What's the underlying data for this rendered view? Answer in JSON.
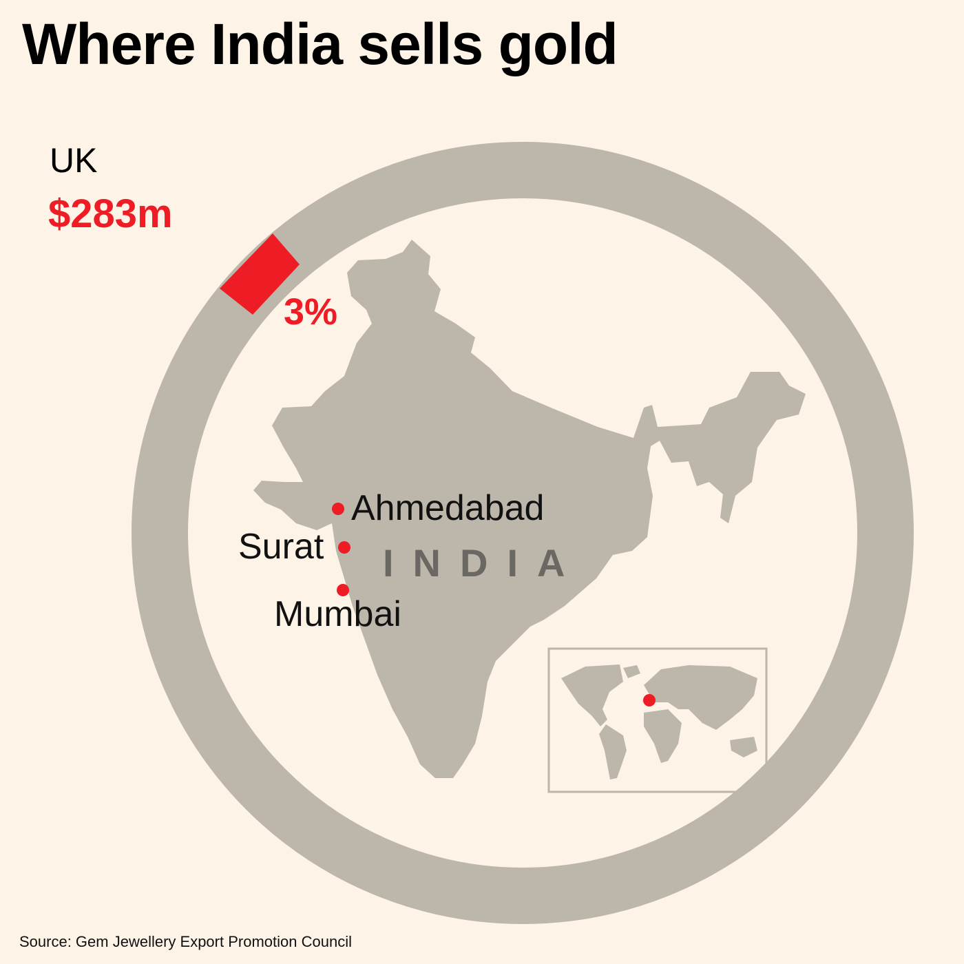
{
  "title": "Where India sells gold",
  "destination": {
    "country": "UK",
    "value": "$283m",
    "share_label": "3%",
    "share_fraction": 0.03
  },
  "map": {
    "region_label": "INDIA",
    "cities": [
      "Ahmedabad",
      "Surat",
      "Mumbai"
    ]
  },
  "source": "Source: Gem Jewellery Export Promotion Council",
  "colors": {
    "background": "#fdf3e6",
    "land": "#bdb6aa",
    "accent": "#ee1c25",
    "label_grey": "#6b6763"
  }
}
